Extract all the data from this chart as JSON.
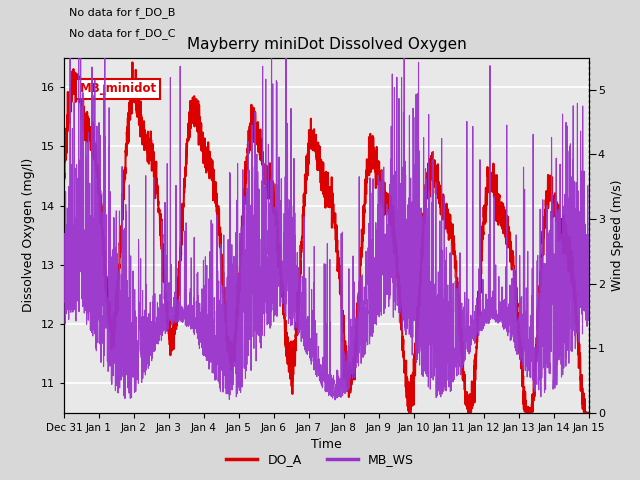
{
  "title": "Mayberry miniDot Dissolved Oxygen",
  "xlabel": "Time",
  "ylabel_left": "Dissolved Oxygen (mg/l)",
  "ylabel_right": "Wind Speed (m/s)",
  "annotation1": "No data for f_DO_B",
  "annotation2": "No data for f_DO_C",
  "legend_box_label": "MB_minidot",
  "do_ylim": [
    10.5,
    16.5
  ],
  "ws_ylim": [
    0.0,
    5.5
  ],
  "do_color": "#dd0000",
  "ws_color": "#9933cc",
  "background_color": "#d8d8d8",
  "plot_bg_color": "#e8e8e8",
  "legend_entries": [
    "DO_A",
    "MB_WS"
  ],
  "legend_colors": [
    "#dd0000",
    "#9933cc"
  ],
  "x_tick_labels": [
    "Dec 31",
    "Jan 1",
    "Jan 2",
    "Jan 3",
    "Jan 4",
    "Jan 5",
    "Jan 6",
    "Jan 7",
    "Jan 8",
    "Jan 9",
    "Jan 10",
    "Jan 11",
    "Jan 12",
    "Jan 13",
    "Jan 14",
    "Jan 15"
  ],
  "x_tick_positions": [
    0,
    1,
    2,
    3,
    4,
    5,
    6,
    7,
    8,
    9,
    10,
    11,
    12,
    13,
    14,
    15
  ]
}
